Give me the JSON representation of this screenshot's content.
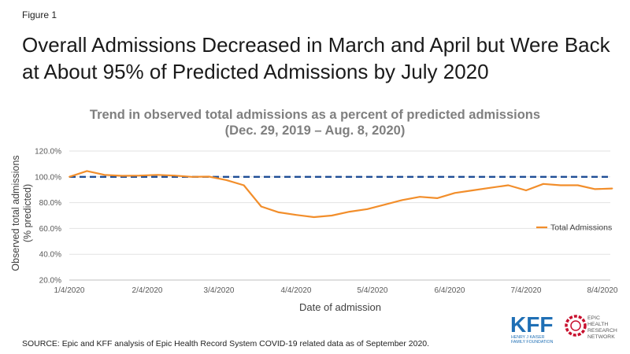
{
  "figure_label": "Figure 1",
  "headline": "Overall Admissions Decreased in March and April but Were Back at About 95% of Predicted Admissions by July 2020",
  "source_note": "SOURCE: Epic and KFF analysis of Epic Health Record System COVID-19 related data as of September 2020.",
  "logos": {
    "kff": "KFF",
    "kff_sub1": "HENRY J KAISER",
    "kff_sub2": "FAMILY FOUNDATION",
    "epic_lines": [
      "EPIC",
      "HEALTH",
      "RESEARCH",
      "NETWORK"
    ]
  },
  "chart_data": {
    "type": "line",
    "title": "Trend in observed total admissions as a percent of predicted admissions",
    "subtitle": "(Dec. 29, 2019 – Aug. 8, 2020)",
    "xlabel": "Date of admission",
    "ylabel_lines": [
      "Observed total admissions",
      "(% predicted)"
    ],
    "ylim": [
      20,
      120
    ],
    "yticks": [
      20,
      40,
      60,
      80,
      100,
      120
    ],
    "ytick_labels": [
      "20.0%",
      "40.0%",
      "60.0%",
      "80.0%",
      "100.0%",
      "120.0%"
    ],
    "x_ticks": [
      "1/4/2020",
      "2/4/2020",
      "3/4/2020",
      "4/4/2020",
      "5/4/2020",
      "6/4/2020",
      "7/4/2020",
      "8/4/2020"
    ],
    "reference_line": {
      "value": 100,
      "style": "dashed",
      "color": "#1f4e96"
    },
    "legend_position": "right",
    "series": [
      {
        "name": "Total Admissions",
        "color": "#f28e2b",
        "x": [
          "2020-01-04",
          "2020-01-11",
          "2020-01-18",
          "2020-01-25",
          "2020-02-01",
          "2020-02-08",
          "2020-02-15",
          "2020-02-22",
          "2020-02-29",
          "2020-03-07",
          "2020-03-14",
          "2020-03-21",
          "2020-03-28",
          "2020-04-04",
          "2020-04-11",
          "2020-04-18",
          "2020-04-25",
          "2020-05-02",
          "2020-05-09",
          "2020-05-16",
          "2020-05-23",
          "2020-05-30",
          "2020-06-06",
          "2020-06-13",
          "2020-06-20",
          "2020-06-27",
          "2020-07-04",
          "2020-07-11",
          "2020-07-18",
          "2020-07-25",
          "2020-08-01",
          "2020-08-08"
        ],
        "values": [
          100.0,
          104.5,
          101.5,
          100.8,
          101.0,
          101.5,
          101.0,
          100.0,
          100.2,
          97.5,
          93.5,
          77.0,
          72.5,
          70.5,
          68.8,
          70.0,
          73.0,
          75.0,
          78.5,
          82.0,
          84.5,
          83.5,
          87.5,
          89.5,
          91.5,
          93.5,
          89.5,
          94.5,
          93.5,
          93.5,
          90.5,
          91.0
        ]
      }
    ]
  }
}
